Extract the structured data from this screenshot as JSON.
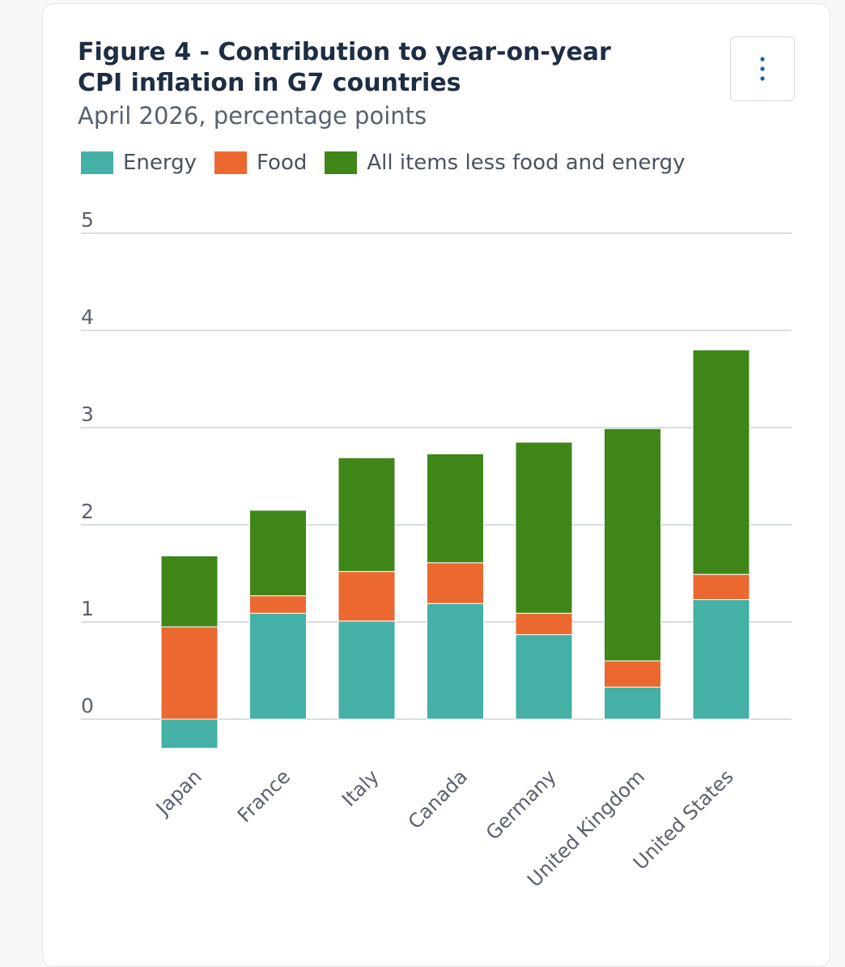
{
  "chart_data": {
    "type": "bar",
    "stacked": true,
    "title": "Figure 4 - Contribution to year-on-year CPI inflation in G7 countries",
    "subtitle": "April 2026, percentage points",
    "xlabel": "",
    "ylabel": "",
    "ylim": [
      -0.35,
      5
    ],
    "yticks": [
      0,
      1,
      2,
      3,
      4,
      5
    ],
    "grid": true,
    "legend_position": "top-left",
    "categories": [
      "Japan",
      "France",
      "Italy",
      "Canada",
      "Germany",
      "United Kingdom",
      "United States"
    ],
    "series": [
      {
        "name": "Energy",
        "color": "#45b0a6",
        "values": [
          -0.3,
          1.09,
          1.01,
          1.19,
          0.87,
          0.33,
          1.23
        ]
      },
      {
        "name": "Food",
        "color": "#ec6831",
        "values": [
          0.95,
          0.18,
          0.51,
          0.42,
          0.22,
          0.27,
          0.26
        ]
      },
      {
        "name": "All items less food and energy",
        "color": "#3f8618",
        "values": [
          0.73,
          0.88,
          1.17,
          1.12,
          1.76,
          2.39,
          2.31
        ]
      }
    ]
  },
  "menu": {
    "icon": "vertical-ellipsis-icon"
  },
  "colors": {
    "title": "#1d2d44",
    "subtitle": "#566070",
    "gridline": "#c9d3dc",
    "axis_text": "#596170"
  }
}
